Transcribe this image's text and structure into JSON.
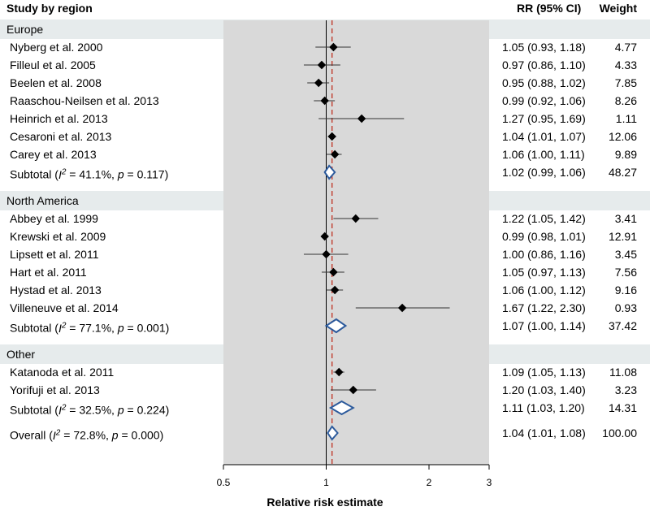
{
  "headers": {
    "study": "Study by region",
    "rr": "RR (95% CI)",
    "weight": "Weight"
  },
  "chart_data": {
    "type": "forest",
    "scale": "log",
    "xlabel": "Relative risk estimate",
    "xlim": [
      0.5,
      3
    ],
    "ticks": [
      "0.5",
      "1",
      "2",
      "3"
    ],
    "null_value": 1,
    "overall_value": 1.04,
    "colors": {
      "band": "#e6ebec",
      "shade": "#d9d9d9",
      "diamond": "#2c5a9c",
      "point": "#000000",
      "dashed": "#c0392b"
    },
    "rows": [
      {
        "kind": "region",
        "label": "Europe"
      },
      {
        "kind": "study",
        "label": "Nyberg et al. 2000",
        "rr": 1.05,
        "lo": 0.93,
        "hi": 1.18,
        "text": "1.05 (0.93, 1.18)",
        "weight": "4.77"
      },
      {
        "kind": "study",
        "label": "Filleul et al. 2005",
        "rr": 0.97,
        "lo": 0.86,
        "hi": 1.1,
        "text": "0.97 (0.86, 1.10)",
        "weight": "4.33"
      },
      {
        "kind": "study",
        "label": "Beelen et al. 2008",
        "rr": 0.95,
        "lo": 0.88,
        "hi": 1.02,
        "text": "0.95 (0.88, 1.02)",
        "weight": "7.85"
      },
      {
        "kind": "study",
        "label": "Raaschou-Neilsen et al. 2013",
        "rr": 0.99,
        "lo": 0.92,
        "hi": 1.06,
        "text": "0.99 (0.92, 1.06)",
        "weight": "8.26"
      },
      {
        "kind": "study",
        "label": "Heinrich et al. 2013",
        "rr": 1.27,
        "lo": 0.95,
        "hi": 1.69,
        "text": "1.27 (0.95, 1.69)",
        "weight": "1.11"
      },
      {
        "kind": "study",
        "label": "Cesaroni et al. 2013",
        "rr": 1.04,
        "lo": 1.01,
        "hi": 1.07,
        "text": "1.04 (1.01, 1.07)",
        "weight": "12.06"
      },
      {
        "kind": "study",
        "label": "Carey et al. 2013",
        "rr": 1.06,
        "lo": 1.0,
        "hi": 1.11,
        "text": "1.06 (1.00, 1.11)",
        "weight": "9.89"
      },
      {
        "kind": "subtotal",
        "prefix": "Subtotal (",
        "i": "I",
        "sup": "2",
        "mid": " = 41.1%, ",
        "p": "p",
        "suffix": " = 0.117)",
        "rr": 1.02,
        "lo": 0.99,
        "hi": 1.06,
        "text": "1.02 (0.99, 1.06)",
        "weight": "48.27"
      },
      {
        "kind": "region",
        "label": "North America"
      },
      {
        "kind": "study",
        "label": "Abbey et al. 1999",
        "rr": 1.22,
        "lo": 1.05,
        "hi": 1.42,
        "text": "1.22 (1.05, 1.42)",
        "weight": "3.41"
      },
      {
        "kind": "study",
        "label": "Krewski et al. 2009",
        "rr": 0.99,
        "lo": 0.98,
        "hi": 1.01,
        "text": "0.99 (0.98, 1.01)",
        "weight": "12.91"
      },
      {
        "kind": "study",
        "label": "Lipsett et al. 2011",
        "rr": 1.0,
        "lo": 0.86,
        "hi": 1.16,
        "text": "1.00 (0.86, 1.16)",
        "weight": "3.45"
      },
      {
        "kind": "study",
        "label": "Hart et al. 2011",
        "rr": 1.05,
        "lo": 0.97,
        "hi": 1.13,
        "text": "1.05 (0.97, 1.13)",
        "weight": "7.56"
      },
      {
        "kind": "study",
        "label": "Hystad et al. 2013",
        "rr": 1.06,
        "lo": 1.0,
        "hi": 1.12,
        "text": "1.06 (1.00, 1.12)",
        "weight": "9.16"
      },
      {
        "kind": "study",
        "label": "Villeneuve et al. 2014",
        "rr": 1.67,
        "lo": 1.22,
        "hi": 2.3,
        "text": "1.67 (1.22, 2.30)",
        "weight": "0.93"
      },
      {
        "kind": "subtotal",
        "prefix": "Subtotal (",
        "i": "I",
        "sup": "2",
        "mid": " = 77.1%, ",
        "p": "p",
        "suffix": " = 0.001)",
        "rr": 1.07,
        "lo": 1.0,
        "hi": 1.14,
        "text": "1.07 (1.00, 1.14)",
        "weight": "37.42"
      },
      {
        "kind": "region",
        "label": "Other"
      },
      {
        "kind": "study",
        "label": "Katanoda et al. 2011",
        "rr": 1.09,
        "lo": 1.05,
        "hi": 1.13,
        "text": "1.09 (1.05, 1.13)",
        "weight": "11.08"
      },
      {
        "kind": "study",
        "label": "Yorifuji et al. 2013",
        "rr": 1.2,
        "lo": 1.03,
        "hi": 1.4,
        "text": "1.20 (1.03, 1.40)",
        "weight": "3.23"
      },
      {
        "kind": "subtotal",
        "prefix": "Subtotal (",
        "i": "I",
        "sup": "2",
        "mid": " = 32.5%, ",
        "p": "p",
        "suffix": " = 0.224)",
        "rr": 1.11,
        "lo": 1.03,
        "hi": 1.2,
        "text": "1.11 (1.03, 1.20)",
        "weight": "14.31"
      },
      {
        "kind": "overall",
        "prefix": "Overall (",
        "i": "I",
        "sup": "2",
        "mid": " = 72.8%, ",
        "p": "p",
        "suffix": " = 0.000)",
        "rr": 1.04,
        "lo": 1.01,
        "hi": 1.08,
        "text": "1.04 (1.01, 1.08)",
        "weight": "100.00"
      }
    ]
  }
}
